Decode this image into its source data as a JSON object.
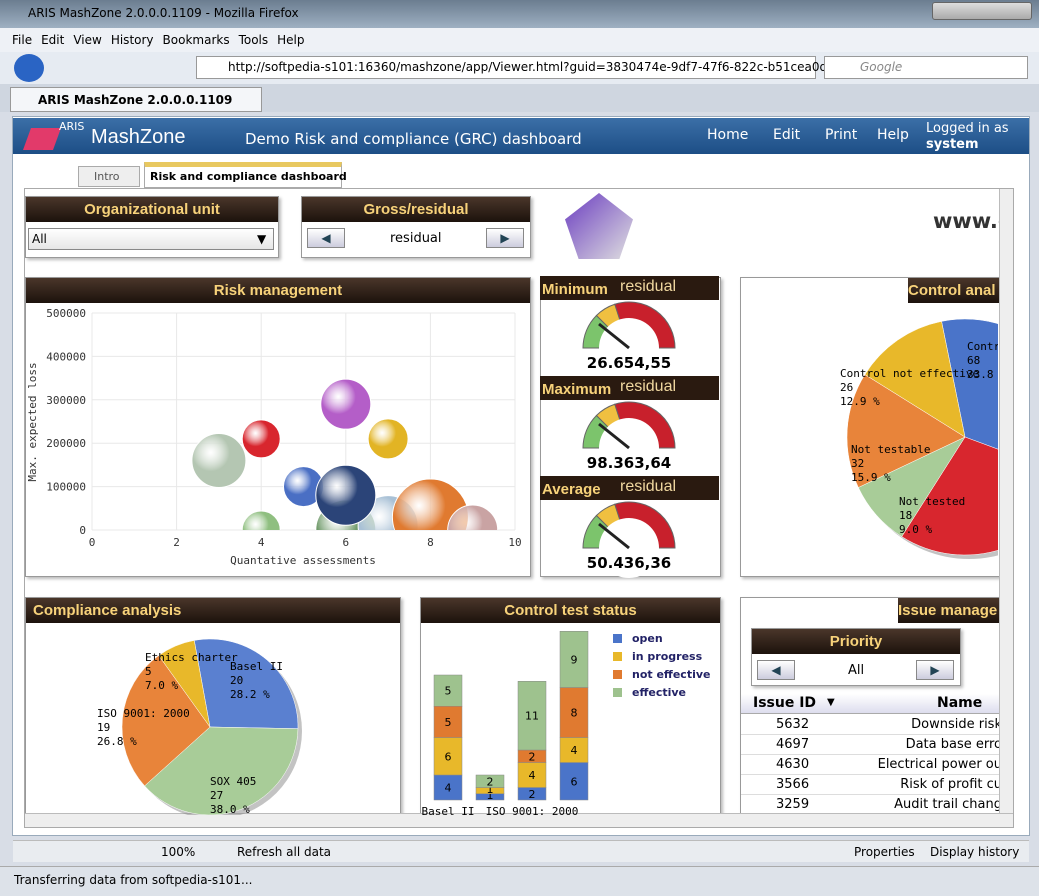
{
  "browser": {
    "window_title": "ARIS MashZone 2.0.0.0.1109 - Mozilla Firefox",
    "menu": [
      "File",
      "Edit",
      "View",
      "History",
      "Bookmarks",
      "Tools",
      "Help"
    ],
    "url": "http://softpedia-s101:16360/mashzone/app/Viewer.html?guid=3830474e-9df7-47f6-822c-b51cea0dc2db",
    "search_placeholder": "Google",
    "tab": "ARIS MashZone 2.0.0.0.1109"
  },
  "app": {
    "logo_small": "ARIS",
    "logo": "MashZone",
    "title": "Demo Risk and compliance (GRC) dashboard",
    "nav": [
      "Home",
      "Edit",
      "Print",
      "Help"
    ],
    "login_label": "Logged in as",
    "user": "system"
  },
  "tabs": [
    "Intro",
    "Risk and compliance dashboard"
  ],
  "filters": {
    "org": {
      "title": "Organizational unit",
      "value": "All"
    },
    "gross": {
      "title": "Gross/residual",
      "value": "residual"
    }
  },
  "site_text": "www.g",
  "risk_chart": {
    "type": "scatter",
    "title": "Risk management",
    "y_label": "Max. expected loss",
    "x_label": "Quantative assessments",
    "xlim": [
      0,
      10
    ],
    "ylim": [
      0,
      500000
    ],
    "xticks": [
      0,
      2,
      4,
      6,
      8,
      10
    ],
    "yticks": [
      0,
      100000,
      200000,
      300000,
      400000,
      500000
    ],
    "grid": true,
    "points": [
      {
        "x": 3,
        "y": 160000,
        "size": 27,
        "color": "#b4c6b2"
      },
      {
        "x": 4,
        "y": 210000,
        "size": 19,
        "color": "#d8262e"
      },
      {
        "x": 6,
        "y": 290000,
        "size": 25,
        "color": "#b45ec8"
      },
      {
        "x": 7,
        "y": 210000,
        "size": 20,
        "color": "#e2b424"
      },
      {
        "x": 4,
        "y": 0,
        "size": 19,
        "color": "#8fbf80"
      },
      {
        "x": 6,
        "y": 0,
        "size": 30,
        "color": "#6f9a6a"
      },
      {
        "x": 7,
        "y": 10000,
        "size": 30,
        "color": "#a9c1d6"
      },
      {
        "x": 8,
        "y": 30000,
        "size": 38,
        "color": "#e07a30"
      },
      {
        "x": 9,
        "y": 0,
        "size": 25,
        "color": "#c9a3a3"
      },
      {
        "x": 5,
        "y": 100000,
        "size": 20,
        "color": "#4a6fc4"
      },
      {
        "x": 6,
        "y": 80000,
        "size": 30,
        "color": "#2b4478"
      }
    ]
  },
  "gauges": [
    {
      "title": "Minimum",
      "subtitle": "residual",
      "value": "26.654,55"
    },
    {
      "title": "Maximum",
      "subtitle": "residual",
      "value": "98.363,64"
    },
    {
      "title": "Average",
      "subtitle": "residual",
      "value": "50.436,36"
    }
  ],
  "control_pie": {
    "type": "pie",
    "title": "Control anal",
    "slices": [
      {
        "name": "Contro",
        "value": 68,
        "pct": "33.8 %",
        "color": "#4a74c9"
      },
      {
        "name": null,
        "value": 57,
        "pct": null,
        "color": "#d8262e"
      },
      {
        "name": "Not tested",
        "value": 18,
        "pct": "9.0 %",
        "color": "#a8cc98"
      },
      {
        "name": "Not testable",
        "value": 32,
        "pct": "15.9 %",
        "color": "#e8843a"
      },
      {
        "name": "Control not effective",
        "value": 26,
        "pct": "12.9 %",
        "color": "#e8b82a"
      }
    ]
  },
  "compliance_pie": {
    "type": "pie",
    "title": "Compliance analysis",
    "slices": [
      {
        "name": "Basel II",
        "value": 20,
        "pct": "28.2 %",
        "color": "#5a80d0"
      },
      {
        "name": "SOX 405",
        "value": 27,
        "pct": "38.0 %",
        "color": "#a8cc98"
      },
      {
        "name": "ISO 9001: 2000",
        "value": 19,
        "pct": "26.8 %",
        "color": "#e8843a"
      },
      {
        "name": "Ethics charter",
        "value": 5,
        "pct": "7.0 %",
        "color": "#e8b82a"
      }
    ]
  },
  "test_status": {
    "type": "bar",
    "title": "Control test status",
    "categories": [
      "Basel II",
      null,
      "ISO 9001: 2000",
      null
    ],
    "series": [
      {
        "name": "open",
        "color": "#4a74c9",
        "values": [
          4,
          1,
          2,
          6
        ]
      },
      {
        "name": "in progress",
        "color": "#e8b82a",
        "values": [
          6,
          1,
          4,
          4
        ]
      },
      {
        "name": "not effective",
        "color": "#e07a30",
        "values": [
          5,
          null,
          2,
          8
        ]
      },
      {
        "name": "effective",
        "color": "#9ec28e",
        "values": [
          5,
          2,
          11,
          9
        ]
      }
    ]
  },
  "issues": {
    "title": "Issue manage",
    "priority_title": "Priority",
    "priority_value": "All",
    "columns": [
      "Issue ID",
      "Name"
    ],
    "rows": [
      [
        "5632",
        "Downside risk"
      ],
      [
        "4697",
        "Data base erro"
      ],
      [
        "4630",
        "Electrical power ou"
      ],
      [
        "3566",
        "Risk of profit cu"
      ],
      [
        "3259",
        "Audit trail chang"
      ]
    ]
  },
  "statusbar": {
    "zoom": "100%",
    "refresh": "Refresh all data",
    "properties": "Properties",
    "history": "Display history",
    "status": "Transferring data from softpedia-s101..."
  }
}
